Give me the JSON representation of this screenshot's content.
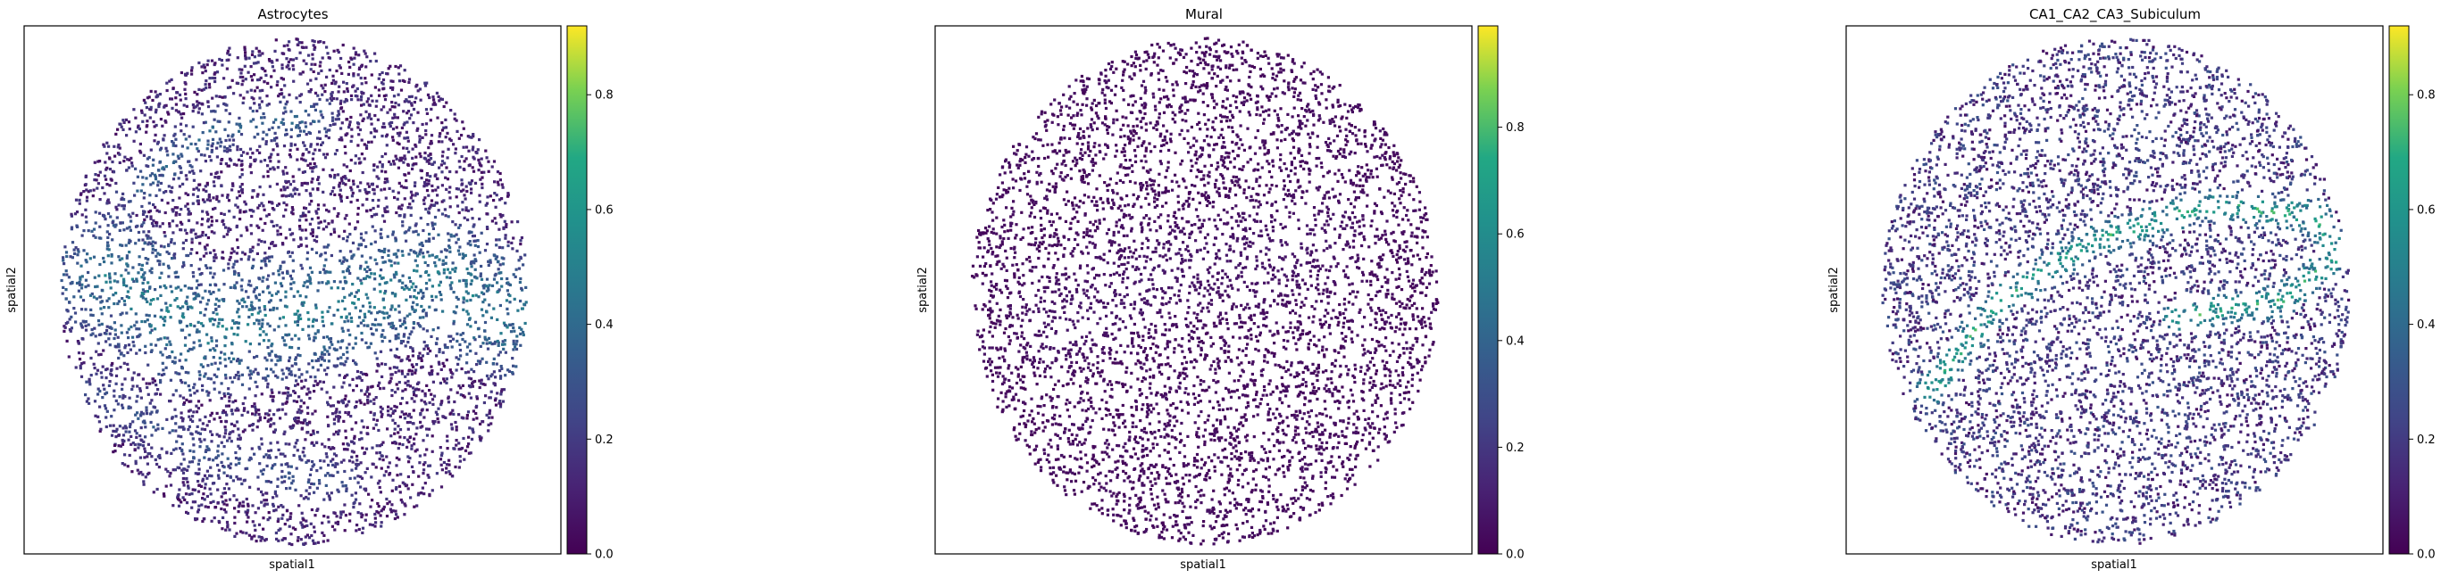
{
  "chart_data": [
    {
      "type": "scatter",
      "title": "Astrocytes",
      "xlabel": "spatial1",
      "ylabel": "spatial2",
      "colormap": "viridis",
      "colorbar": {
        "min": 0.0,
        "max": 0.92,
        "ticks": [
          0.0,
          0.2,
          0.4,
          0.6,
          0.8
        ],
        "tick_labels": [
          "0.0",
          "0.2",
          "0.4",
          "0.6",
          "0.8"
        ]
      },
      "pattern": {
        "baseline": 0.12,
        "bands": [
          {
            "path": [
              [
                0.1,
                0.47
              ],
              [
                0.3,
                0.58
              ],
              [
                0.55,
                0.54
              ],
              [
                0.8,
                0.47
              ],
              [
                0.95,
                0.55
              ]
            ],
            "width": 0.13,
            "value": 0.5
          },
          {
            "path": [
              [
                0.16,
                0.3
              ],
              [
                0.33,
                0.18
              ],
              [
                0.55,
                0.16
              ]
            ],
            "width": 0.05,
            "value": 0.38
          },
          {
            "path": [
              [
                0.08,
                0.7
              ],
              [
                0.3,
                0.82
              ],
              [
                0.6,
                0.88
              ]
            ],
            "width": 0.06,
            "value": 0.32
          }
        ]
      },
      "xticks": [],
      "yticks": []
    },
    {
      "type": "scatter",
      "title": "Mural",
      "xlabel": "spatial1",
      "ylabel": "spatial2",
      "colormap": "viridis",
      "colorbar": {
        "min": 0.0,
        "max": 0.99,
        "ticks": [
          0.0,
          0.2,
          0.4,
          0.6,
          0.8
        ],
        "tick_labels": [
          "0.0",
          "0.2",
          "0.4",
          "0.6",
          "0.8"
        ]
      },
      "pattern": {
        "baseline": 0.04,
        "bands": [
          {
            "path": [
              [
                0.2,
                0.55
              ],
              [
                0.45,
                0.45
              ],
              [
                0.75,
                0.4
              ]
            ],
            "width": 0.12,
            "value": 0.09
          }
        ]
      },
      "xticks": [],
      "yticks": []
    },
    {
      "type": "scatter",
      "title": "CA1_CA2_CA3_Subiculum",
      "xlabel": "spatial1",
      "ylabel": "spatial2",
      "colormap": "viridis",
      "colorbar": {
        "min": 0.0,
        "max": 0.92,
        "ticks": [
          0.0,
          0.2,
          0.4,
          0.6,
          0.8
        ],
        "tick_labels": [
          "0.0",
          "0.2",
          "0.4",
          "0.6",
          "0.8"
        ]
      },
      "pattern": {
        "baseline": 0.18,
        "bands": [
          {
            "path": [
              [
                0.1,
                0.7
              ],
              [
                0.25,
                0.52
              ],
              [
                0.45,
                0.4
              ],
              [
                0.7,
                0.33
              ],
              [
                0.93,
                0.35
              ],
              [
                0.97,
                0.43
              ],
              [
                0.85,
                0.52
              ],
              [
                0.63,
                0.55
              ]
            ],
            "width": 0.035,
            "value": 0.7
          }
        ]
      },
      "xticks": [],
      "yticks": []
    }
  ]
}
